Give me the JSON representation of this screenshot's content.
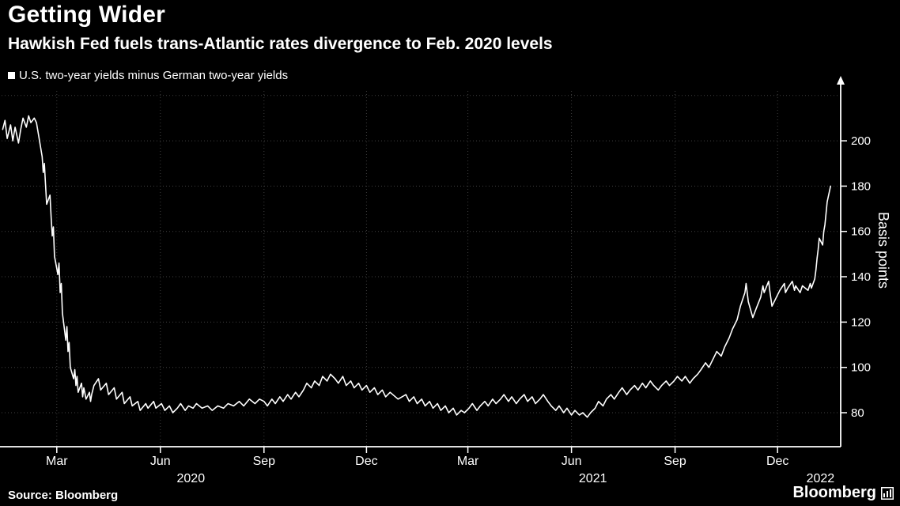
{
  "chart_data": {
    "type": "line",
    "title": "Getting Wider",
    "subtitle": "Hawkish Fed fuels trans-Atlantic rates divergence to Feb. 2020 levels",
    "ylabel": "Basis points",
    "ylim": [
      65,
      222
    ],
    "y_ticks": [
      200,
      180,
      160,
      140,
      120,
      100,
      80
    ],
    "y_grid": [
      80,
      100,
      120,
      140,
      160,
      180,
      200,
      220
    ],
    "x_range": [
      "2020-01-12",
      "2022-01-26"
    ],
    "x_ticks": [
      {
        "date": "2020-03-01",
        "label": "Mar"
      },
      {
        "date": "2020-06-01",
        "label": "Jun"
      },
      {
        "date": "2020-09-01",
        "label": "Sep"
      },
      {
        "date": "2020-12-01",
        "label": "Dec"
      },
      {
        "date": "2021-03-01",
        "label": "Mar"
      },
      {
        "date": "2021-06-01",
        "label": "Jun"
      },
      {
        "date": "2021-09-01",
        "label": "Sep"
      },
      {
        "date": "2021-12-01",
        "label": "Dec"
      }
    ],
    "year_labels": [
      {
        "date": "2020-06-28",
        "label": "2020"
      },
      {
        "date": "2021-06-20",
        "label": "2021"
      },
      {
        "date": "2022-01-08",
        "label": "2022"
      }
    ],
    "grid": true,
    "legend_position": "top-left",
    "background": "#000000",
    "series": [
      {
        "name": "U.S. two-year yields minus German two-year yields",
        "color": "#ffffff",
        "points": [
          [
            "2020-01-13",
            205
          ],
          [
            "2020-01-15",
            209
          ],
          [
            "2020-01-17",
            201
          ],
          [
            "2020-01-20",
            207
          ],
          [
            "2020-01-22",
            200
          ],
          [
            "2020-01-24",
            206
          ],
          [
            "2020-01-27",
            199
          ],
          [
            "2020-01-29",
            205
          ],
          [
            "2020-01-31",
            210
          ],
          [
            "2020-02-03",
            206
          ],
          [
            "2020-02-05",
            211
          ],
          [
            "2020-02-07",
            208
          ],
          [
            "2020-02-10",
            210
          ],
          [
            "2020-02-12",
            208
          ],
          [
            "2020-02-14",
            202
          ],
          [
            "2020-02-17",
            193
          ],
          [
            "2020-02-18",
            186
          ],
          [
            "2020-02-19",
            190
          ],
          [
            "2020-02-20",
            181
          ],
          [
            "2020-02-21",
            172
          ],
          [
            "2020-02-24",
            176
          ],
          [
            "2020-02-25",
            166
          ],
          [
            "2020-02-26",
            158
          ],
          [
            "2020-02-27",
            162
          ],
          [
            "2020-02-28",
            149
          ],
          [
            "2020-03-02",
            141
          ],
          [
            "2020-03-03",
            146
          ],
          [
            "2020-03-04",
            133
          ],
          [
            "2020-03-05",
            137
          ],
          [
            "2020-03-06",
            124
          ],
          [
            "2020-03-09",
            112
          ],
          [
            "2020-03-10",
            118
          ],
          [
            "2020-03-11",
            107
          ],
          [
            "2020-03-12",
            111
          ],
          [
            "2020-03-13",
            100
          ],
          [
            "2020-03-16",
            95
          ],
          [
            "2020-03-17",
            99
          ],
          [
            "2020-03-18",
            92
          ],
          [
            "2020-03-19",
            96
          ],
          [
            "2020-03-20",
            89
          ],
          [
            "2020-03-23",
            93
          ],
          [
            "2020-03-24",
            87
          ],
          [
            "2020-03-25",
            91
          ],
          [
            "2020-03-27",
            86
          ],
          [
            "2020-03-30",
            89
          ],
          [
            "2020-03-31",
            85
          ],
          [
            "2020-04-01",
            88
          ],
          [
            "2020-04-03",
            92
          ],
          [
            "2020-04-07",
            95
          ],
          [
            "2020-04-09",
            90
          ],
          [
            "2020-04-14",
            93
          ],
          [
            "2020-04-16",
            88
          ],
          [
            "2020-04-21",
            91
          ],
          [
            "2020-04-23",
            86
          ],
          [
            "2020-04-28",
            89
          ],
          [
            "2020-04-30",
            84
          ],
          [
            "2020-05-05",
            87
          ],
          [
            "2020-05-07",
            83
          ],
          [
            "2020-05-12",
            85
          ],
          [
            "2020-05-14",
            81
          ],
          [
            "2020-05-19",
            84
          ],
          [
            "2020-05-21",
            82
          ],
          [
            "2020-05-26",
            85
          ],
          [
            "2020-05-28",
            82
          ],
          [
            "2020-06-02",
            84
          ],
          [
            "2020-06-05",
            81
          ],
          [
            "2020-06-09",
            83
          ],
          [
            "2020-06-12",
            80
          ],
          [
            "2020-06-16",
            82
          ],
          [
            "2020-06-19",
            84
          ],
          [
            "2020-06-23",
            81
          ],
          [
            "2020-06-26",
            83
          ],
          [
            "2020-06-30",
            82
          ],
          [
            "2020-07-03",
            84
          ],
          [
            "2020-07-08",
            82
          ],
          [
            "2020-07-13",
            83
          ],
          [
            "2020-07-17",
            81
          ],
          [
            "2020-07-22",
            83
          ],
          [
            "2020-07-27",
            82
          ],
          [
            "2020-07-31",
            84
          ],
          [
            "2020-08-05",
            83
          ],
          [
            "2020-08-10",
            85
          ],
          [
            "2020-08-14",
            83
          ],
          [
            "2020-08-19",
            86
          ],
          [
            "2020-08-24",
            84
          ],
          [
            "2020-08-28",
            86
          ],
          [
            "2020-09-01",
            85
          ],
          [
            "2020-09-04",
            83
          ],
          [
            "2020-09-08",
            86
          ],
          [
            "2020-09-11",
            84
          ],
          [
            "2020-09-15",
            87
          ],
          [
            "2020-09-18",
            85
          ],
          [
            "2020-09-22",
            88
          ],
          [
            "2020-09-25",
            86
          ],
          [
            "2020-09-29",
            89
          ],
          [
            "2020-10-02",
            87
          ],
          [
            "2020-10-06",
            90
          ],
          [
            "2020-10-09",
            93
          ],
          [
            "2020-10-13",
            91
          ],
          [
            "2020-10-16",
            94
          ],
          [
            "2020-10-20",
            92
          ],
          [
            "2020-10-23",
            96
          ],
          [
            "2020-10-27",
            94
          ],
          [
            "2020-10-30",
            97
          ],
          [
            "2020-11-03",
            95
          ],
          [
            "2020-11-06",
            93
          ],
          [
            "2020-11-10",
            96
          ],
          [
            "2020-11-13",
            92
          ],
          [
            "2020-11-17",
            94
          ],
          [
            "2020-11-20",
            91
          ],
          [
            "2020-11-24",
            93
          ],
          [
            "2020-11-27",
            90
          ],
          [
            "2020-12-01",
            92
          ],
          [
            "2020-12-04",
            89
          ],
          [
            "2020-12-08",
            91
          ],
          [
            "2020-12-11",
            88
          ],
          [
            "2020-12-15",
            90
          ],
          [
            "2020-12-18",
            87
          ],
          [
            "2020-12-22",
            89
          ],
          [
            "2020-12-29",
            86
          ],
          [
            "2021-01-05",
            88
          ],
          [
            "2021-01-08",
            85
          ],
          [
            "2021-01-12",
            87
          ],
          [
            "2021-01-15",
            84
          ],
          [
            "2021-01-19",
            86
          ],
          [
            "2021-01-22",
            83
          ],
          [
            "2021-01-26",
            85
          ],
          [
            "2021-01-29",
            82
          ],
          [
            "2021-02-02",
            84
          ],
          [
            "2021-02-05",
            81
          ],
          [
            "2021-02-09",
            83
          ],
          [
            "2021-02-12",
            80
          ],
          [
            "2021-02-16",
            82
          ],
          [
            "2021-02-19",
            79
          ],
          [
            "2021-02-23",
            81
          ],
          [
            "2021-02-26",
            80
          ],
          [
            "2021-03-02",
            82
          ],
          [
            "2021-03-05",
            84
          ],
          [
            "2021-03-09",
            81
          ],
          [
            "2021-03-12",
            83
          ],
          [
            "2021-03-16",
            85
          ],
          [
            "2021-03-19",
            83
          ],
          [
            "2021-03-23",
            86
          ],
          [
            "2021-03-26",
            84
          ],
          [
            "2021-03-30",
            86
          ],
          [
            "2021-04-02",
            88
          ],
          [
            "2021-04-06",
            85
          ],
          [
            "2021-04-09",
            87
          ],
          [
            "2021-04-13",
            84
          ],
          [
            "2021-04-16",
            86
          ],
          [
            "2021-04-20",
            88
          ],
          [
            "2021-04-23",
            85
          ],
          [
            "2021-04-27",
            87
          ],
          [
            "2021-04-30",
            84
          ],
          [
            "2021-05-04",
            86
          ],
          [
            "2021-05-07",
            88
          ],
          [
            "2021-05-11",
            85
          ],
          [
            "2021-05-14",
            83
          ],
          [
            "2021-05-18",
            81
          ],
          [
            "2021-05-21",
            83
          ],
          [
            "2021-05-25",
            80
          ],
          [
            "2021-05-28",
            82
          ],
          [
            "2021-06-01",
            79
          ],
          [
            "2021-06-04",
            81
          ],
          [
            "2021-06-08",
            79
          ],
          [
            "2021-06-11",
            80
          ],
          [
            "2021-06-15",
            78
          ],
          [
            "2021-06-18",
            80
          ],
          [
            "2021-06-22",
            82
          ],
          [
            "2021-06-25",
            85
          ],
          [
            "2021-06-29",
            83
          ],
          [
            "2021-07-02",
            86
          ],
          [
            "2021-07-06",
            88
          ],
          [
            "2021-07-09",
            86
          ],
          [
            "2021-07-13",
            89
          ],
          [
            "2021-07-16",
            91
          ],
          [
            "2021-07-20",
            88
          ],
          [
            "2021-07-23",
            90
          ],
          [
            "2021-07-27",
            92
          ],
          [
            "2021-07-30",
            90
          ],
          [
            "2021-08-03",
            93
          ],
          [
            "2021-08-06",
            91
          ],
          [
            "2021-08-10",
            94
          ],
          [
            "2021-08-13",
            92
          ],
          [
            "2021-08-17",
            90
          ],
          [
            "2021-08-20",
            92
          ],
          [
            "2021-08-24",
            94
          ],
          [
            "2021-08-27",
            92
          ],
          [
            "2021-08-31",
            94
          ],
          [
            "2021-09-03",
            96
          ],
          [
            "2021-09-07",
            94
          ],
          [
            "2021-09-10",
            96
          ],
          [
            "2021-09-14",
            93
          ],
          [
            "2021-09-17",
            95
          ],
          [
            "2021-09-21",
            97
          ],
          [
            "2021-09-24",
            99
          ],
          [
            "2021-09-28",
            102
          ],
          [
            "2021-10-01",
            100
          ],
          [
            "2021-10-05",
            104
          ],
          [
            "2021-10-08",
            107
          ],
          [
            "2021-10-12",
            105
          ],
          [
            "2021-10-15",
            109
          ],
          [
            "2021-10-19",
            113
          ],
          [
            "2021-10-22",
            117
          ],
          [
            "2021-10-26",
            121
          ],
          [
            "2021-10-29",
            127
          ],
          [
            "2021-11-02",
            133
          ],
          [
            "2021-11-03",
            137
          ],
          [
            "2021-11-05",
            129
          ],
          [
            "2021-11-09",
            122
          ],
          [
            "2021-11-12",
            126
          ],
          [
            "2021-11-16",
            131
          ],
          [
            "2021-11-18",
            136
          ],
          [
            "2021-11-19",
            133
          ],
          [
            "2021-11-23",
            138
          ],
          [
            "2021-11-24",
            134
          ],
          [
            "2021-11-26",
            127
          ],
          [
            "2021-11-30",
            131
          ],
          [
            "2021-12-03",
            134
          ],
          [
            "2021-12-07",
            137
          ],
          [
            "2021-12-08",
            133
          ],
          [
            "2021-12-10",
            135
          ],
          [
            "2021-12-14",
            138
          ],
          [
            "2021-12-16",
            134
          ],
          [
            "2021-12-17",
            136
          ],
          [
            "2021-12-21",
            133
          ],
          [
            "2021-12-23",
            136
          ],
          [
            "2021-12-28",
            134
          ],
          [
            "2021-12-30",
            137
          ],
          [
            "2021-12-31",
            135
          ],
          [
            "2022-01-03",
            139
          ],
          [
            "2022-01-04",
            143
          ],
          [
            "2022-01-05",
            148
          ],
          [
            "2022-01-06",
            152
          ],
          [
            "2022-01-07",
            157
          ],
          [
            "2022-01-10",
            154
          ],
          [
            "2022-01-11",
            160
          ],
          [
            "2022-01-12",
            163
          ],
          [
            "2022-01-13",
            168
          ],
          [
            "2022-01-14",
            173
          ],
          [
            "2022-01-17",
            180
          ]
        ]
      }
    ]
  },
  "footer": {
    "source": "Source: Bloomberg",
    "brand": "Bloomberg"
  }
}
